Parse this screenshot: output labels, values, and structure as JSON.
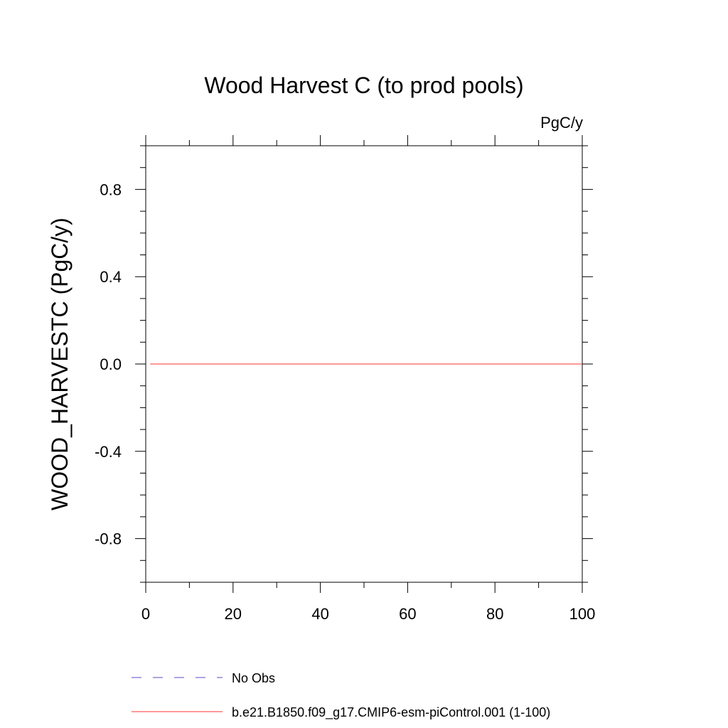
{
  "chart_data": {
    "type": "line",
    "title": "Wood Harvest C (to prod pools)",
    "units_label": "PgC/y",
    "xlabel": "",
    "ylabel": "WOOD_HARVESTC  (PgC/y)",
    "xlim": [
      0,
      100
    ],
    "ylim": [
      -1.0,
      1.0
    ],
    "x_ticks": [
      0,
      20,
      40,
      60,
      80,
      100
    ],
    "x_tick_labels": [
      "0",
      "20",
      "40",
      "60",
      "80",
      "100"
    ],
    "x_minor_step": 10,
    "y_ticks": [
      -0.8,
      -0.4,
      0.0,
      0.4,
      0.8
    ],
    "y_tick_labels": [
      "-0.8",
      "-0.4",
      "0.0",
      "0.4",
      "0.8"
    ],
    "y_minor_step": 0.1,
    "grid": false,
    "legend_position": "bottom",
    "series": [
      {
        "name": "No Obs",
        "color": "#7a6fd0",
        "dash": "dashed",
        "x": [],
        "y": []
      },
      {
        "name": "b.e21.B1850.f09_g17.CMIP6-esm-piControl.001 (1-100)",
        "color": "#ff5a5a",
        "dash": "solid",
        "x": [
          1,
          100
        ],
        "y": [
          0.0,
          0.0
        ]
      }
    ]
  }
}
